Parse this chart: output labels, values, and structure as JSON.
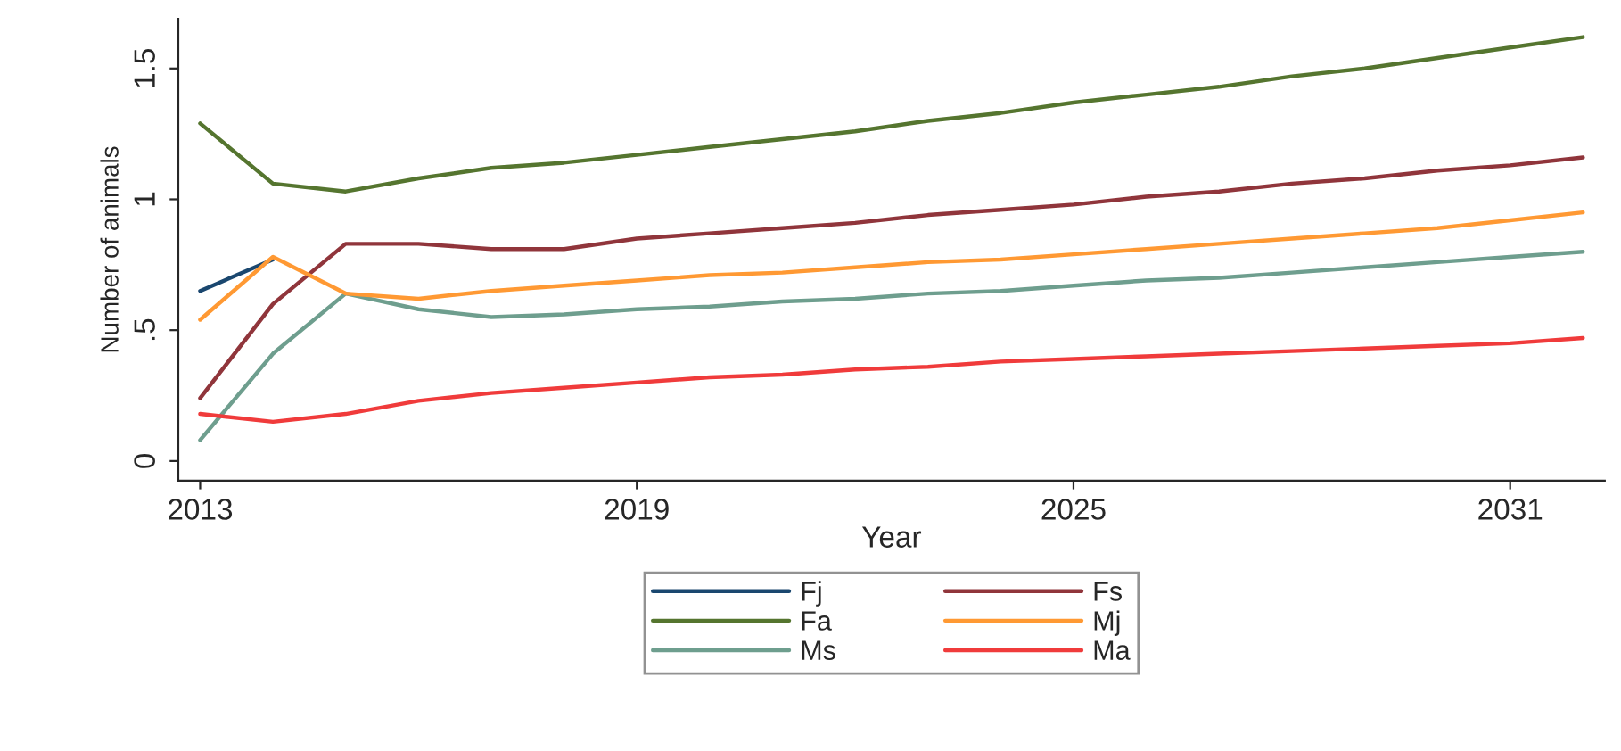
{
  "chart_data": {
    "type": "line",
    "xlabel": "Year",
    "ylabel": "Number of animals",
    "x": [
      2013,
      2014,
      2015,
      2016,
      2017,
      2018,
      2019,
      2020,
      2021,
      2022,
      2023,
      2024,
      2025,
      2026,
      2027,
      2028,
      2029,
      2030,
      2031,
      2032
    ],
    "series": [
      {
        "name": "Fj",
        "color": "#1a476f",
        "values": [
          0.65,
          0.77,
          null,
          null,
          null,
          null,
          null,
          null,
          null,
          null,
          null,
          null,
          null,
          null,
          null,
          null,
          null,
          null,
          null,
          null
        ]
      },
      {
        "name": "Fa",
        "color": "#55752f",
        "values": [
          1.29,
          1.06,
          1.03,
          1.08,
          1.12,
          1.14,
          1.17,
          1.2,
          1.23,
          1.26,
          1.3,
          1.33,
          1.37,
          1.4,
          1.43,
          1.47,
          1.5,
          1.54,
          1.58,
          1.62
        ]
      },
      {
        "name": "Ms",
        "color": "#6e9e8e",
        "values": [
          0.08,
          0.41,
          0.64,
          0.58,
          0.55,
          0.56,
          0.58,
          0.59,
          0.61,
          0.62,
          0.64,
          0.65,
          0.67,
          0.69,
          0.7,
          0.72,
          0.74,
          0.76,
          0.78,
          0.8
        ]
      },
      {
        "name": "Fs",
        "color": "#90353b",
        "values": [
          0.24,
          0.6,
          0.83,
          0.83,
          0.81,
          0.81,
          0.85,
          0.87,
          0.89,
          0.91,
          0.94,
          0.96,
          0.98,
          1.01,
          1.03,
          1.06,
          1.08,
          1.11,
          1.13,
          1.16
        ]
      },
      {
        "name": "Mj",
        "color": "#ff9933",
        "values": [
          0.54,
          0.78,
          0.64,
          0.62,
          0.65,
          0.67,
          0.69,
          0.71,
          0.72,
          0.74,
          0.76,
          0.77,
          0.79,
          0.81,
          0.83,
          0.85,
          0.87,
          0.89,
          0.92,
          0.95
        ]
      },
      {
        "name": "Ma",
        "color": "#f03b3b",
        "values": [
          0.18,
          0.15,
          0.18,
          0.23,
          0.26,
          0.28,
          0.3,
          0.32,
          0.33,
          0.35,
          0.36,
          0.38,
          0.39,
          0.4,
          0.41,
          0.42,
          0.43,
          0.44,
          0.45,
          0.47
        ]
      }
    ],
    "xlim": [
      2012.7,
      2032.3
    ],
    "xticks": [
      2013,
      2019,
      2025,
      2031
    ],
    "ylim": [
      -0.075,
      1.69
    ],
    "yticks": [
      0,
      {
        "value": 0.5,
        "label": ".5"
      },
      1,
      1.5
    ],
    "grid": false,
    "legend": "bottom",
    "marker": "none",
    "line_style": "solid"
  }
}
